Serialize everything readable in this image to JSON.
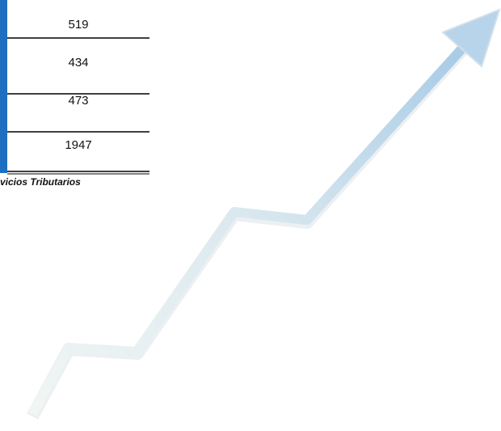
{
  "table": {
    "rows": [
      [
        519
      ],
      [
        434
      ],
      [
        473
      ],
      [
        1947
      ]
    ]
  },
  "caption": "vicios Tributarios"
}
